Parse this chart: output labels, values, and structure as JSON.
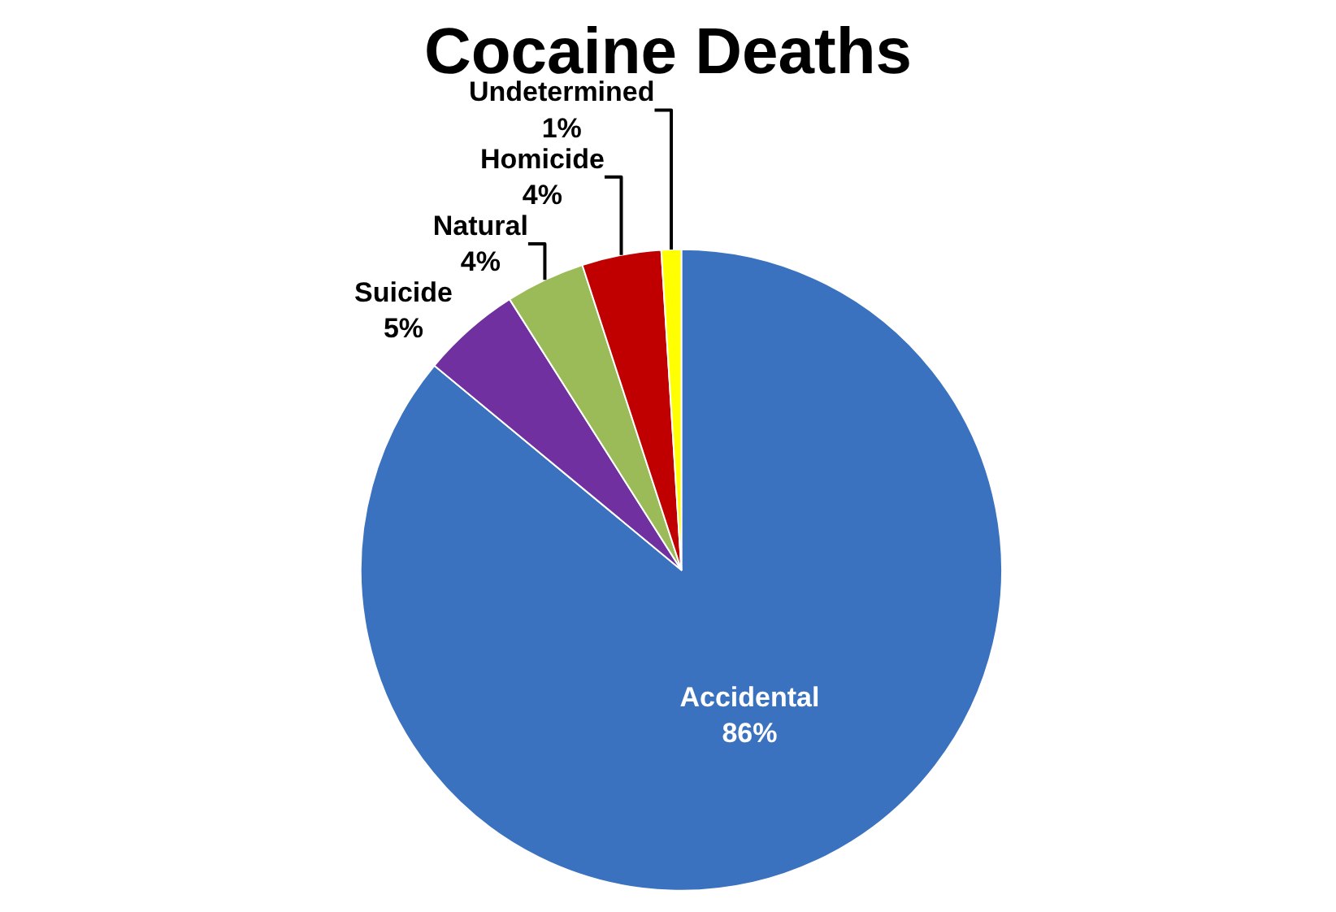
{
  "chart_data": {
    "type": "pie",
    "title": "Cocaine Deaths",
    "categories": [
      "Accidental",
      "Suicide",
      "Natural",
      "Homicide",
      "Undetermined"
    ],
    "values": [
      86,
      5,
      4,
      4,
      1
    ],
    "value_labels": [
      "86%",
      "5%",
      "4%",
      "4%",
      "1%"
    ],
    "colors": [
      "#3a72c0",
      "#7030a0",
      "#9bbb59",
      "#c00000",
      "#ffff00"
    ],
    "legend": false
  }
}
